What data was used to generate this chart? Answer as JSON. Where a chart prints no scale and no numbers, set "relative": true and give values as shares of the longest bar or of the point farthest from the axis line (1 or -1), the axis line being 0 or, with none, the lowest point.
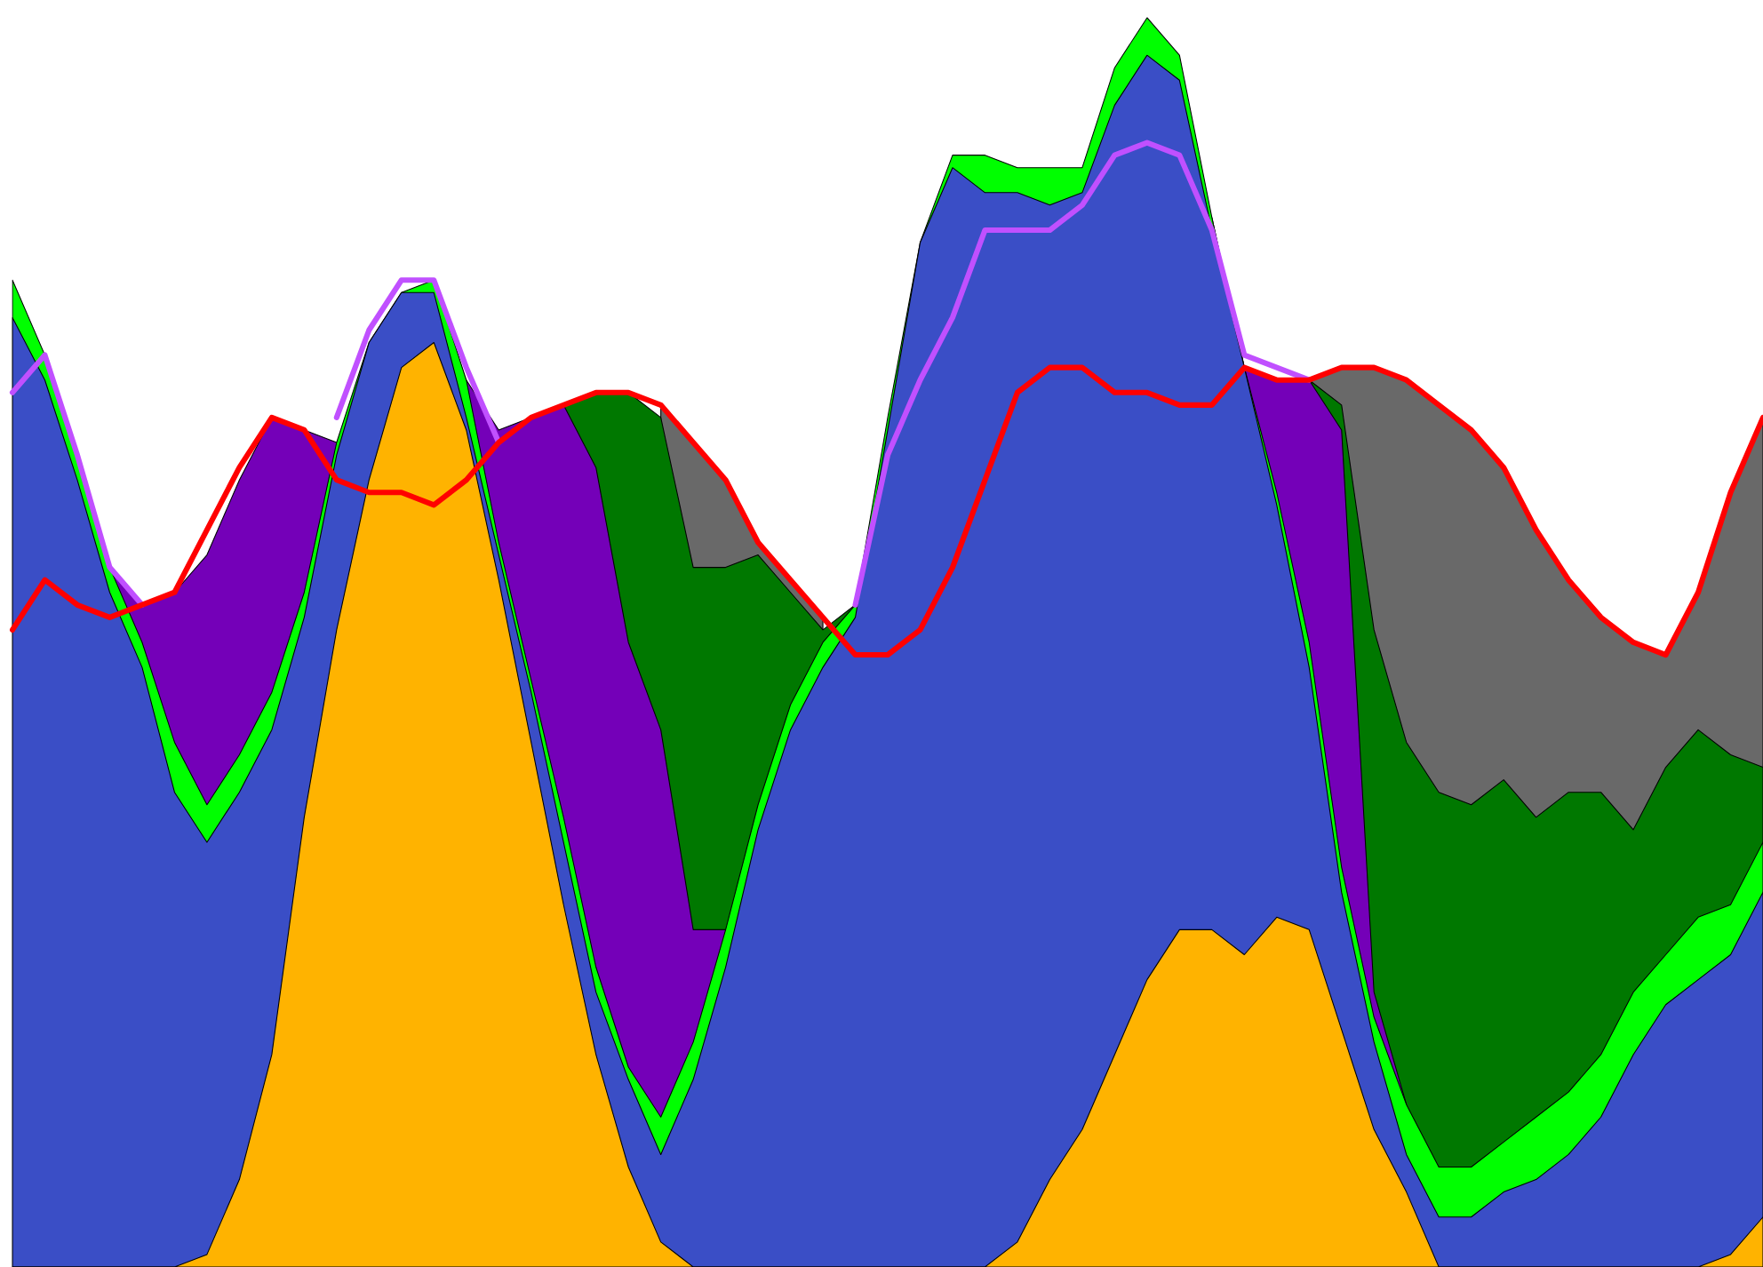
{
  "chart_data": {
    "type": "area",
    "relative": true,
    "categories": [
      null,
      null,
      null,
      null,
      null,
      null,
      null,
      null,
      null,
      null,
      null,
      null,
      null,
      null,
      null,
      null,
      null,
      null,
      null,
      null,
      null,
      null,
      null,
      null,
      null,
      null,
      null,
      null,
      null,
      null,
      null,
      null,
      null,
      null,
      null,
      null,
      null,
      null,
      null,
      null,
      null,
      null,
      null,
      null,
      null,
      null,
      null,
      null,
      null,
      null,
      null,
      null,
      null,
      null,
      null
    ],
    "series": [
      {
        "color": "#696969",
        "values": [
          null,
          null,
          null,
          null,
          null,
          null,
          null,
          null,
          null,
          null,
          null,
          null,
          null,
          null,
          null,
          null,
          null,
          null,
          null,
          null,
          0.69,
          0.66,
          0.63,
          0.58,
          0.55,
          0.52,
          null,
          null,
          null,
          null,
          null,
          null,
          null,
          null,
          null,
          null,
          null,
          null,
          null,
          null,
          0.71,
          0.72,
          0.72,
          0.71,
          0.69,
          0.67,
          0.64,
          0.59,
          0.55,
          0.52,
          0.5,
          0.49,
          0.54,
          0.62,
          0.68
        ]
      },
      {
        "color": "#007800",
        "values": [
          null,
          null,
          null,
          null,
          null,
          null,
          null,
          null,
          null,
          null,
          null,
          null,
          null,
          null,
          null,
          null,
          null,
          0.69,
          0.7,
          0.7,
          0.68,
          0.56,
          0.56,
          0.57,
          0.54,
          0.51,
          0.53,
          null,
          null,
          null,
          null,
          null,
          null,
          null,
          null,
          null,
          null,
          null,
          null,
          0.71,
          0.71,
          0.69,
          0.51,
          0.42,
          0.38,
          0.37,
          0.39,
          0.36,
          0.38,
          0.38,
          0.35,
          0.4,
          0.43,
          0.41,
          0.4
        ]
      },
      {
        "color": "#7400b8",
        "values": [
          null,
          null,
          null,
          0.56,
          0.53,
          0.54,
          0.57,
          0.63,
          0.68,
          0.67,
          0.66,
          null,
          null,
          null,
          0.71,
          0.67,
          0.68,
          0.69,
          0.64,
          0.5,
          0.43,
          0.27,
          0.27,
          null,
          null,
          null,
          null,
          null,
          null,
          null,
          null,
          null,
          null,
          null,
          null,
          null,
          null,
          0.84,
          0.72,
          0.71,
          0.71,
          0.67,
          0.22,
          0.13,
          null,
          null,
          null,
          null,
          null,
          null,
          null,
          null,
          null,
          null,
          null
        ]
      },
      {
        "color": "#00ff00",
        "values": [
          0.79,
          0.73,
          0.65,
          0.56,
          0.5,
          0.42,
          0.37,
          0.41,
          0.46,
          0.54,
          0.66,
          0.74,
          0.78,
          0.79,
          0.71,
          0.58,
          0.47,
          0.36,
          0.24,
          0.16,
          0.12,
          0.18,
          0.27,
          0.37,
          0.45,
          0.5,
          0.53,
          0.68,
          0.82,
          0.89,
          0.89,
          0.88,
          0.88,
          0.88,
          0.96,
          1.0,
          0.97,
          0.84,
          0.72,
          0.62,
          0.5,
          0.32,
          0.2,
          0.13,
          0.08,
          0.08,
          0.1,
          0.12,
          0.14,
          0.17,
          0.22,
          0.25,
          0.28,
          0.29,
          0.34
        ]
      },
      {
        "color": "#3a4ec6",
        "values": [
          0.76,
          0.71,
          0.63,
          0.54,
          0.48,
          0.38,
          0.34,
          0.38,
          0.43,
          0.52,
          0.65,
          0.74,
          0.78,
          0.78,
          0.68,
          0.57,
          0.46,
          0.34,
          0.22,
          0.15,
          0.09,
          0.15,
          0.24,
          0.35,
          0.43,
          0.48,
          0.52,
          0.67,
          0.82,
          0.88,
          0.86,
          0.86,
          0.85,
          0.86,
          0.93,
          0.97,
          0.95,
          0.83,
          0.72,
          0.61,
          0.48,
          0.3,
          0.18,
          0.09,
          0.04,
          0.04,
          0.06,
          0.07,
          0.09,
          0.12,
          0.17,
          0.21,
          0.23,
          0.25,
          0.3
        ]
      },
      {
        "color": "#ffb300",
        "values": [
          0,
          0,
          0,
          0,
          0,
          0,
          0.01,
          0.07,
          0.17,
          0.36,
          0.51,
          0.63,
          0.72,
          0.74,
          0.67,
          0.55,
          0.42,
          0.29,
          0.17,
          0.08,
          0.02,
          0,
          0,
          0,
          0,
          0,
          0,
          0,
          0,
          0,
          0,
          0.02,
          0.07,
          0.11,
          0.17,
          0.23,
          0.27,
          0.27,
          0.25,
          0.28,
          0.27,
          0.19,
          0.11,
          0.06,
          0,
          0,
          0,
          0,
          0,
          0,
          0,
          0,
          0,
          0.01,
          0.04
        ]
      },
      {
        "type": "line",
        "color": "#c050ff",
        "values": [
          0.7,
          0.73,
          0.65,
          0.56,
          0.53,
          null,
          null,
          null,
          null,
          null,
          0.68,
          0.75,
          0.79,
          0.79,
          0.72,
          0.66,
          null,
          null,
          null,
          null,
          null,
          null,
          null,
          null,
          null,
          null,
          0.53,
          0.65,
          0.71,
          0.76,
          0.83,
          0.83,
          0.83,
          0.85,
          0.89,
          0.9,
          0.89,
          0.83,
          0.73,
          0.72,
          0.71,
          null,
          null,
          null,
          null,
          null,
          null,
          null,
          null,
          null,
          null,
          null,
          null,
          null,
          null
        ]
      },
      {
        "type": "line",
        "color": "#ff0000",
        "values": [
          0.51,
          0.55,
          0.53,
          0.52,
          0.53,
          0.54,
          0.59,
          0.64,
          0.68,
          0.67,
          0.63,
          0.62,
          0.62,
          0.61,
          0.63,
          0.66,
          0.68,
          0.69,
          0.7,
          0.7,
          0.69,
          0.66,
          0.63,
          0.58,
          0.55,
          0.52,
          0.49,
          0.49,
          0.51,
          0.56,
          0.63,
          0.7,
          0.72,
          0.72,
          0.7,
          0.7,
          0.69,
          0.69,
          0.72,
          0.71,
          0.71,
          0.72,
          0.72,
          0.71,
          0.69,
          0.67,
          0.64,
          0.59,
          0.55,
          0.52,
          0.5,
          0.49,
          0.54,
          0.62,
          0.68
        ]
      }
    ]
  }
}
